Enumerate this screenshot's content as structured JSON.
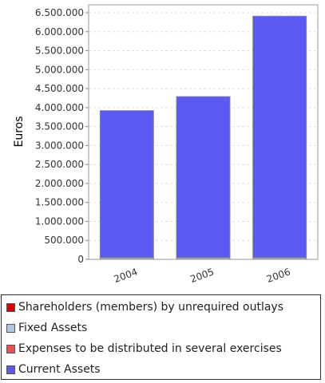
{
  "chart_data": {
    "type": "bar",
    "stacked": true,
    "categories": [
      "2004",
      "2005",
      "2006"
    ],
    "ylabel": "Euros",
    "ylim": [
      0,
      6750000
    ],
    "yticks": [
      "0",
      "500.000",
      "1.000.000",
      "1.500.000",
      "2.000.000",
      "2.500.000",
      "3.000.000",
      "3.500.000",
      "4.000.000",
      "4.500.000",
      "5.000.000",
      "5.500.000",
      "6.000.000",
      "6.500.000"
    ],
    "grid": true,
    "legend_position": "bottom",
    "series": [
      {
        "name": "Shareholders (members) by unrequired outlays",
        "color": "#e00000",
        "values": [
          0,
          0,
          0
        ]
      },
      {
        "name": "Fixed Assets",
        "color": "#b0c8e8",
        "values": [
          40000,
          40000,
          40000
        ]
      },
      {
        "name": "Expenses to be distributed in several exercises",
        "color": "#f05050",
        "values": [
          0,
          0,
          0
        ]
      },
      {
        "name": "Current Assets",
        "color": "#5a5af0",
        "values": [
          3880000,
          4250000,
          6370000
        ]
      }
    ]
  }
}
